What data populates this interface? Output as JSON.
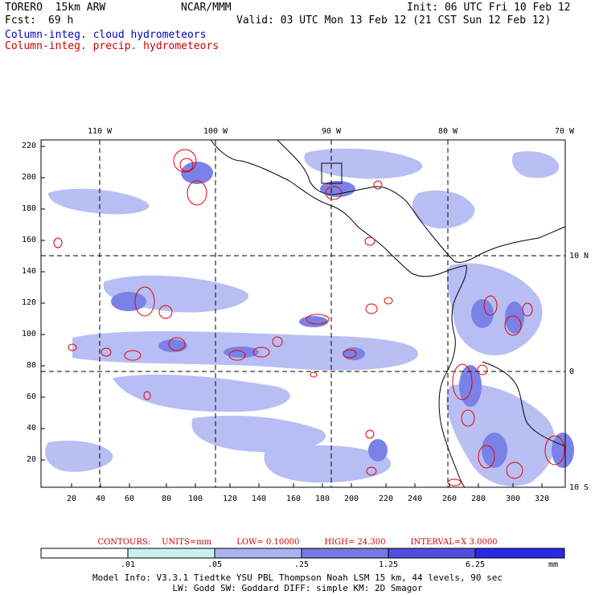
{
  "header": {
    "model": "TORERO  15km ARW",
    "org": "NCAR/MMM",
    "init": "Init: 06 UTC Fri 10 Feb 12",
    "fcst_label": "Fcst:",
    "fcst_value": "69 h",
    "valid": "Valid: 03 UTC Mon 13 Feb 12 (21 CST Sun 12 Feb 12)"
  },
  "legend": {
    "cloud": "Column-integ. cloud hydrometeors",
    "precip": "Column-integ. precip. hydrometeors"
  },
  "colors": {
    "cloud_field": [
      "#ffffff",
      "#c8f0f0",
      "#aab4f0",
      "#7878e6",
      "#5050dc",
      "#2828e6"
    ],
    "precip_contour": "#e60000",
    "coast": "#000000"
  },
  "map": {
    "lon_labels": [
      "110 W",
      "100 W",
      "90 W",
      "80 W",
      "70 W"
    ],
    "lat_labels": [
      "10 N",
      "0",
      "10 S"
    ],
    "x_ticks": [
      "20",
      "40",
      "60",
      "80",
      "100",
      "120",
      "140",
      "160",
      "180",
      "200",
      "220",
      "240",
      "260",
      "280",
      "300",
      "320"
    ],
    "y_ticks": [
      "220",
      "200",
      "180",
      "160",
      "140",
      "120",
      "100",
      "80",
      "60",
      "40",
      "20"
    ]
  },
  "contours": {
    "label": "CONTOURS:",
    "units": "UNITS=mm",
    "low": "LOW= 0.10000",
    "high": "HIGH=  24.300",
    "interval": "INTERVAL=X  3.0000"
  },
  "colorbar": {
    "labels": [
      ".01",
      ".05",
      ".25",
      "1.25",
      "6.25"
    ],
    "units": "mm"
  },
  "model_info": {
    "line1": "Model Info: V3.3.1   Tiedtke YSU PBL  Thompson    Noah LSM  15 km,   44 levels,   90 sec",
    "line2": "LW: Godd SW: Goddard DIFF: simple KM: 2D Smagor"
  }
}
